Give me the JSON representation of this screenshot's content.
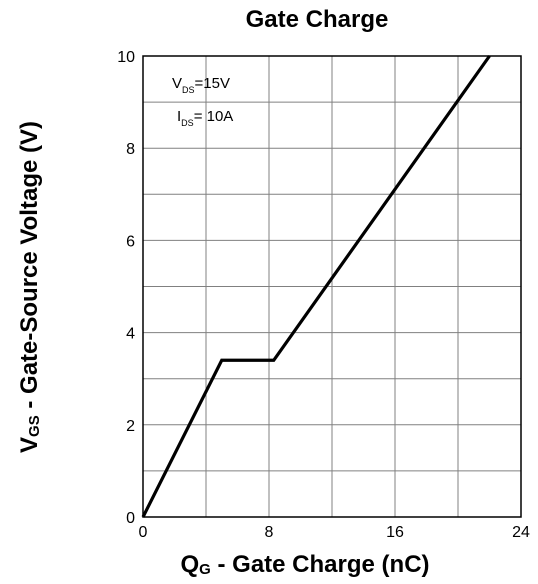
{
  "chart_data": {
    "type": "line",
    "title": "Gate Charge",
    "xlabel": {
      "main": "Q",
      "sub": "G",
      "rest": " - Gate Charge (nC)"
    },
    "ylabel": {
      "main": "V",
      "sub": "GS",
      "rest": " - Gate-Source Voltage (V)"
    },
    "xlim": [
      0,
      24
    ],
    "ylim": [
      0,
      10
    ],
    "x_ticks": [
      "0",
      "8",
      "16",
      "24"
    ],
    "y_ticks": [
      "0",
      "2",
      "4",
      "6",
      "8",
      "10"
    ],
    "grid": true,
    "annotations": [
      {
        "main": "V",
        "sub": "DS",
        "rest": "=15V"
      },
      {
        "main": "I",
        "sub": "DS",
        "rest": "= 10A"
      }
    ],
    "series": [
      {
        "x": [
          0,
          5.0,
          8.3,
          22.0
        ],
        "y": [
          0,
          3.4,
          3.4,
          10
        ]
      }
    ],
    "line_color": "#000000",
    "grid_color": "#808080"
  }
}
